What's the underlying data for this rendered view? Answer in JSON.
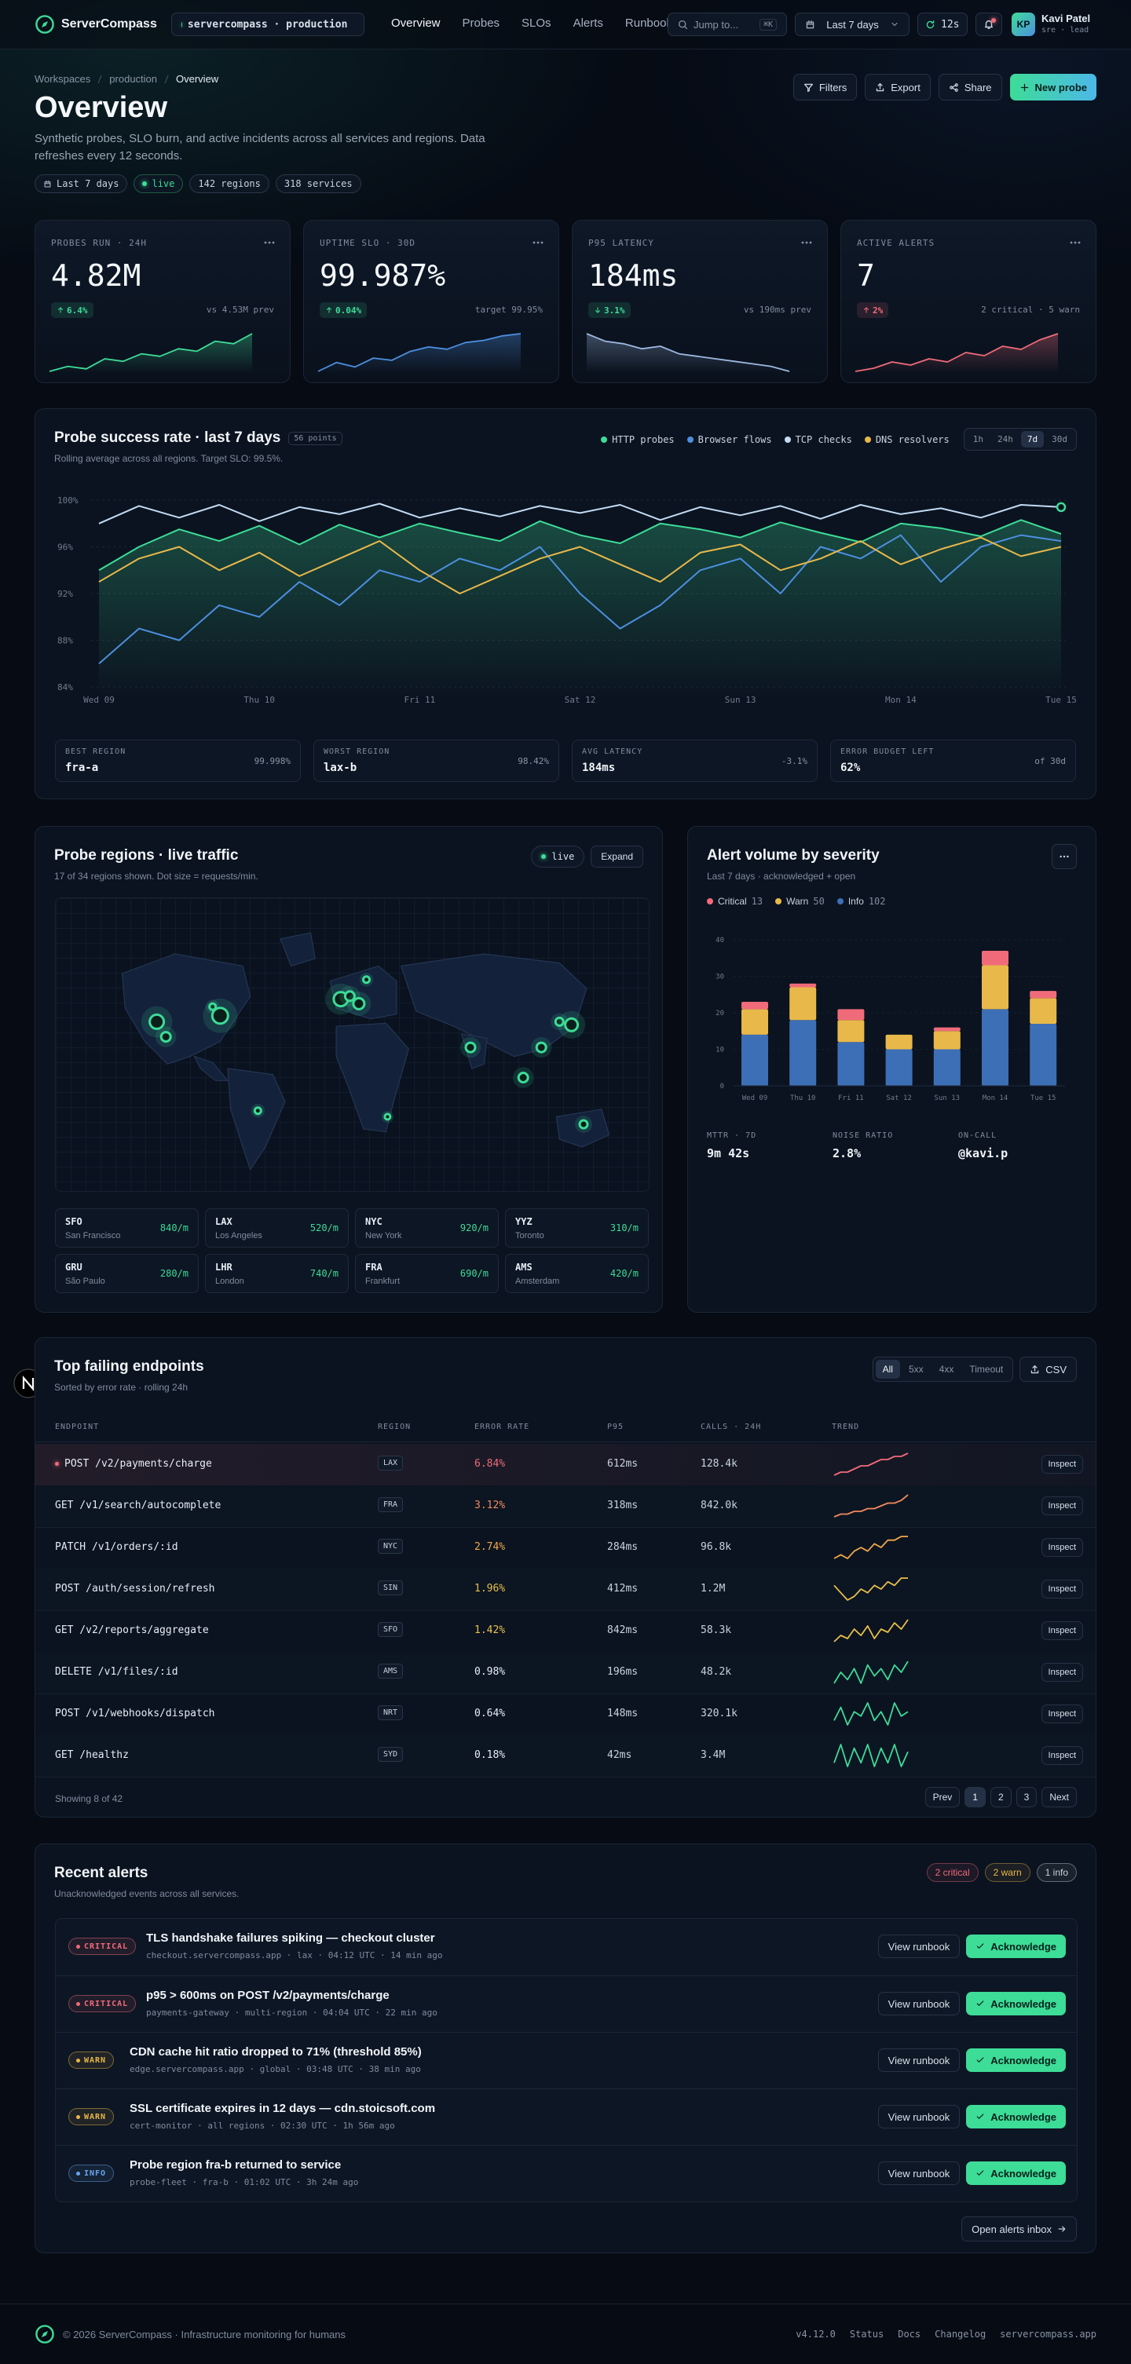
{
  "nav": {
    "brand": "ServerCompass",
    "env": "servercompass · production",
    "links": [
      "Overview",
      "Probes",
      "SLOs",
      "Alerts",
      "Runbooks"
    ],
    "active_link": "Overview",
    "search": "Jump to...",
    "shortcut": "⌘K",
    "range": "Last 7 days",
    "refresh": "12s",
    "avatar": "KP",
    "user": "Kavi Patel",
    "role": "sre · lead"
  },
  "header": {
    "breadcrumb": [
      "Workspaces",
      "production",
      "Overview"
    ],
    "title": "Overview",
    "description": "Synthetic probes, SLO burn, and active incidents across all services and regions. Data refreshes every 12 seconds.",
    "chips": [
      "Last 7 days",
      "live",
      "142 regions",
      "318 services"
    ],
    "actions": [
      "Filters",
      "Export",
      "Share",
      "New probe"
    ]
  },
  "kpis": [
    {
      "label": "PROBES RUN · 24H",
      "value": "4.82M",
      "delta": "6.4%",
      "direction": "up",
      "delta_color": "#3ddc97",
      "compare": "vs 4.53M prev",
      "color": "#3ddc97",
      "trend": [
        22,
        24,
        23,
        27,
        26,
        29,
        28,
        31,
        30,
        34,
        33,
        37
      ]
    },
    {
      "label": "UPTIME SLO · 30D",
      "value": "99.987%",
      "delta": "0.04%",
      "direction": "up",
      "delta_color": "#3ddc97",
      "compare": "target 99.95%",
      "color": "#4c8fe0",
      "trend": [
        10,
        14,
        12,
        16,
        15,
        19,
        21,
        20,
        23,
        24,
        26,
        27
      ]
    },
    {
      "label": "P95 LATENCY",
      "value": "184ms",
      "delta": "3.1%",
      "direction": "down",
      "delta_color": "#3ddc97",
      "compare": "vs 190ms prev",
      "color": "#9db8e0",
      "trend": [
        30,
        27,
        26,
        24,
        25,
        22,
        21,
        20,
        19,
        18,
        17,
        15
      ]
    },
    {
      "label": "ACTIVE ALERTS",
      "value": "7",
      "delta": "2%",
      "direction": "up",
      "delta_color": "#f06b7a",
      "compare": "2 critical · 5 warn",
      "color": "#f06b7a",
      "trend": [
        10,
        11,
        13,
        12,
        14,
        13,
        16,
        15,
        18,
        17,
        20,
        22
      ]
    }
  ],
  "chart_data": [
    {
      "type": "line",
      "title": "Probe success rate · last 7 days",
      "badge": "56 points",
      "subtitle": "Rolling average across all regions. Target SLO: 99.5%.",
      "categories": [
        "Wed 09",
        null,
        null,
        null,
        "Thu 10",
        null,
        null,
        null,
        "Fri 11",
        null,
        null,
        null,
        "Sat 12",
        null,
        null,
        null,
        "Sun 13",
        null,
        null,
        null,
        "Mon 14",
        null,
        null,
        null,
        "Tue 15"
      ],
      "ylim": [
        84,
        100
      ],
      "yticks": [
        {
          "value": 84,
          "label": "84%"
        },
        {
          "value": 88,
          "label": "88%"
        },
        {
          "value": 92,
          "label": "92%"
        },
        {
          "value": 96,
          "label": "96%"
        },
        {
          "value": 100,
          "label": "100%"
        }
      ],
      "grid": true,
      "legend": "top-right",
      "ranges": [
        "1h",
        "24h",
        "7d",
        "30d"
      ],
      "active_range": "7d",
      "series": [
        {
          "name": "HTTP probes",
          "color": "#3ddc97",
          "fill": true,
          "values": [
            94,
            96,
            97.5,
            96.5,
            97.8,
            96.2,
            97.9,
            96.8,
            98,
            97.2,
            96.5,
            98.2,
            97,
            96.3,
            98,
            97.5,
            96.8,
            98.1,
            97.2,
            96.4,
            98,
            97.6,
            96.9,
            98.3,
            97.1
          ]
        },
        {
          "name": "Browser flows",
          "color": "#4c8fe0",
          "values": [
            86,
            89,
            88,
            91,
            90,
            93,
            91,
            94,
            93,
            95,
            94,
            96,
            92,
            89,
            91,
            94,
            95,
            92,
            96,
            95,
            97,
            93,
            96,
            97,
            96.5
          ]
        },
        {
          "name": "TCP checks",
          "color": "#c3dbf3",
          "values": [
            98,
            99.5,
            98.5,
            99.6,
            98.2,
            99.4,
            98.8,
            99.7,
            98.5,
            99.3,
            98.6,
            99.5,
            98.9,
            99.6,
            98.3,
            99.4,
            98.7,
            99.5,
            98.4,
            99.6,
            98.8,
            99.3,
            98.5,
            99.6,
            99.4
          ]
        },
        {
          "name": "DNS resolvers",
          "color": "#e8b84a",
          "values": [
            93,
            95,
            96,
            94,
            95.5,
            93.5,
            95,
            96.5,
            94,
            92,
            93.5,
            95,
            96,
            94.5,
            93,
            95.5,
            96.2,
            94,
            95,
            96.5,
            94.5,
            95.8,
            96.8,
            95.2,
            96
          ]
        }
      ]
    },
    {
      "type": "bar",
      "stacked": true,
      "title": "Alert volume by severity",
      "subtitle": "Last 7 days · acknowledged + open",
      "categories": [
        "Wed 09",
        "Thu 10",
        "Fri 11",
        "Sat 12",
        "Sun 13",
        "Mon 14",
        "Tue 15"
      ],
      "ylim": [
        0,
        40
      ],
      "yticks": [
        0,
        10,
        20,
        30,
        40
      ],
      "grid": true,
      "legend": "top-left",
      "series": [
        {
          "name": "Info",
          "color": "#3d6fb6",
          "total": 102,
          "values": [
            14,
            18,
            12,
            10,
            10,
            21,
            17
          ]
        },
        {
          "name": "Warn",
          "color": "#e8b84a",
          "total": 50,
          "values": [
            7,
            9,
            6,
            4,
            5,
            12,
            7
          ]
        },
        {
          "name": "Critical",
          "color": "#f06b7a",
          "total": 13,
          "values": [
            2,
            1,
            3,
            0,
            1,
            4,
            2
          ]
        }
      ]
    }
  ],
  "probe_stats": [
    {
      "label": "BEST REGION",
      "value": "fra-a",
      "note": "99.998%"
    },
    {
      "label": "WORST REGION",
      "value": "lax-b",
      "note": "98.42%"
    },
    {
      "label": "AVG LATENCY",
      "value": "184ms",
      "note": "-3.1%"
    },
    {
      "label": "ERROR BUDGET LEFT",
      "value": "62%",
      "note": "of 30d"
    }
  ],
  "alert_stats": [
    {
      "label": "MTTR · 7D",
      "value": "9m 42s"
    },
    {
      "label": "NOISE RATIO",
      "value": "2.8%"
    },
    {
      "label": "ON-CALL",
      "value": "@kavi.p"
    }
  ],
  "regions_map": {
    "title": "Probe regions · live traffic",
    "subtitle": "17 of 34 regions shown. Dot size = requests/min.",
    "live": "live",
    "expand": "Expand",
    "regions": [
      {
        "code": "SFO",
        "city": "San Francisco",
        "rate": "840/m"
      },
      {
        "code": "LAX",
        "city": "Los Angeles",
        "rate": "520/m"
      },
      {
        "code": "NYC",
        "city": "New York",
        "rate": "920/m"
      },
      {
        "code": "YYZ",
        "city": "Toronto",
        "rate": "310/m"
      },
      {
        "code": "GRU",
        "city": "São Paulo",
        "rate": "280/m"
      },
      {
        "code": "LHR",
        "city": "London",
        "rate": "740/m"
      },
      {
        "code": "FRA",
        "city": "Frankfurt",
        "rate": "690/m"
      },
      {
        "code": "AMS",
        "city": "Amsterdam",
        "rate": "420/m"
      }
    ]
  },
  "endpoints": {
    "title": "Top failing endpoints",
    "subtitle": "Sorted by error rate · rolling 24h",
    "filters": [
      "All",
      "5xx",
      "4xx",
      "Timeout"
    ],
    "active_filter": "All",
    "export": "CSV",
    "columns": [
      "ENDPOINT",
      "REGION",
      "ERROR RATE",
      "P95",
      "CALLS · 24H",
      "TREND"
    ],
    "rows": [
      {
        "endpoint": "POST /v2/payments/charge",
        "region": "LAX",
        "error_rate": "6.84%",
        "p95": "612ms",
        "calls": "128.4k",
        "action": "Inspect",
        "color": "#f06b7a",
        "highlight": true,
        "trend": [
          3,
          4,
          4,
          5,
          6,
          6,
          7,
          8,
          8,
          9,
          9,
          10
        ]
      },
      {
        "endpoint": "GET /v1/search/autocomplete",
        "region": "FRA",
        "error_rate": "3.12%",
        "p95": "318ms",
        "calls": "842.0k",
        "action": "Inspect",
        "color": "#f28a5c",
        "trend": [
          2,
          3,
          3,
          4,
          4,
          5,
          5,
          6,
          7,
          7,
          8,
          10
        ]
      },
      {
        "endpoint": "PATCH /v1/orders/:id",
        "region": "NYC",
        "error_rate": "2.74%",
        "p95": "284ms",
        "calls": "96.8k",
        "action": "Inspect",
        "color": "#f0a94a",
        "trend": [
          3,
          4,
          3,
          5,
          6,
          5,
          7,
          6,
          8,
          8,
          9,
          9
        ]
      },
      {
        "endpoint": "POST /auth/session/refresh",
        "region": "SIN",
        "error_rate": "1.96%",
        "p95": "412ms",
        "calls": "1.2M",
        "action": "Inspect",
        "color": "#e8c04a",
        "trend": [
          7,
          5,
          3,
          4,
          6,
          5,
          7,
          6,
          8,
          7,
          9,
          9
        ]
      },
      {
        "endpoint": "GET /v2/reports/aggregate",
        "region": "SFO",
        "error_rate": "1.42%",
        "p95": "842ms",
        "calls": "58.3k",
        "action": "Inspect",
        "color": "#e8c04a",
        "trend": [
          3,
          5,
          4,
          7,
          5,
          8,
          4,
          7,
          6,
          9,
          7,
          10
        ]
      },
      {
        "endpoint": "DELETE /v1/files/:id",
        "region": "AMS",
        "error_rate": "0.98%",
        "p95": "196ms",
        "calls": "48.2k",
        "action": "Inspect",
        "color": "#e6edf5",
        "trend": [
          3,
          6,
          4,
          7,
          3,
          8,
          5,
          7,
          4,
          8,
          6,
          9
        ]
      },
      {
        "endpoint": "POST /v1/webhooks/dispatch",
        "region": "NRT",
        "error_rate": "0.64%",
        "p95": "148ms",
        "calls": "320.1k",
        "action": "Inspect",
        "color": "#e6edf5",
        "trend": [
          4,
          7,
          3,
          6,
          5,
          8,
          4,
          6,
          3,
          8,
          5,
          6
        ]
      },
      {
        "endpoint": "GET /healthz",
        "region": "SYD",
        "error_rate": "0.18%",
        "p95": "42ms",
        "calls": "3.4M",
        "action": "Inspect",
        "color": "#e6edf5",
        "trend": [
          3,
          8,
          2,
          7,
          3,
          8,
          2,
          7,
          3,
          8,
          2,
          6
        ]
      }
    ],
    "trend_colors": [
      "#f06b7a",
      "#f28a5c",
      "#f0a94a",
      "#e8c04a",
      "#e8c04a",
      "#3ddc97",
      "#3ddc97",
      "#3ddc97"
    ],
    "showing": "Showing 8 of 42",
    "pages": [
      "Prev",
      "1",
      "2",
      "3",
      "Next"
    ],
    "active_page": "1"
  },
  "alerts": {
    "title": "Recent alerts",
    "subtitle": "Unacknowledged events across all services.",
    "counts": [
      {
        "text": "2 critical",
        "color": "#f06b7a"
      },
      {
        "text": "2 warn",
        "color": "#e8b84a"
      },
      {
        "text": "1 info",
        "color": "#c9d3df"
      }
    ],
    "items": [
      {
        "level": "CRITICAL",
        "color": "#f06b7a",
        "title": "TLS handshake failures spiking — checkout cluster",
        "meta": "checkout.servercompass.app · lax · 04:12 UTC · 14 min ago"
      },
      {
        "level": "CRITICAL",
        "color": "#f06b7a",
        "title": "p95 > 600ms on POST /v2/payments/charge",
        "meta": "payments-gateway · multi-region · 04:04 UTC · 22 min ago"
      },
      {
        "level": "WARN",
        "color": "#e8b84a",
        "title": "CDN cache hit ratio dropped to 71% (threshold 85%)",
        "meta": "edge.servercompass.app · global · 03:48 UTC · 38 min ago"
      },
      {
        "level": "WARN",
        "color": "#e8b84a",
        "title": "SSL certificate expires in 12 days — cdn.stoicsoft.com",
        "meta": "cert-monitor · all regions · 02:30 UTC · 1h 56m ago"
      },
      {
        "level": "INFO",
        "color": "#6aa5f0",
        "title": "Probe region fra-b returned to service",
        "meta": "probe-fleet · fra-b · 01:02 UTC · 3h 24m ago"
      }
    ],
    "view": "View runbook",
    "ack": "Acknowledge",
    "inbox": "Open alerts inbox"
  },
  "footer": {
    "copyright": "© 2026 ServerCompass · Infrastructure monitoring for humans",
    "version": "v4.12.0",
    "links": [
      "Status",
      "Docs",
      "Changelog",
      "servercompass.app"
    ]
  }
}
